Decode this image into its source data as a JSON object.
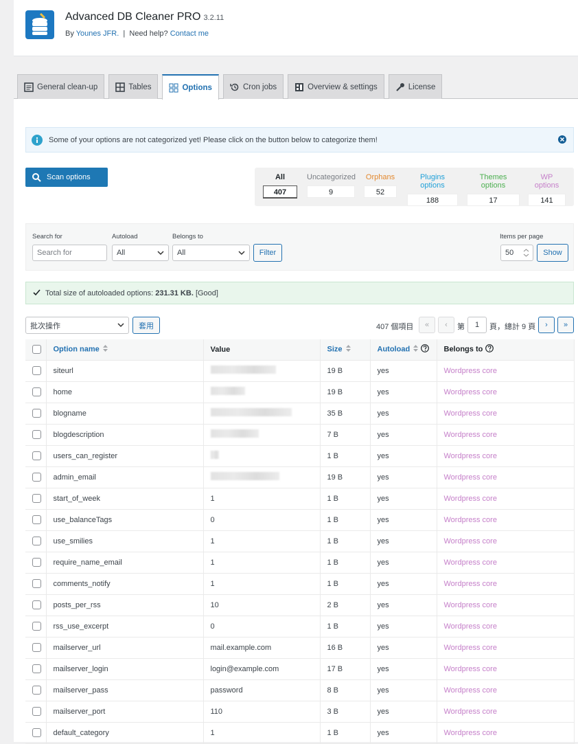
{
  "header": {
    "title": "Advanced DB Cleaner PRO",
    "version": "3.2.11",
    "by": "By",
    "author": "Younes JFR.",
    "separator": "|",
    "help": "Need help?",
    "contact": "Contact me"
  },
  "tabs": {
    "items": [
      "General clean-up",
      "Tables",
      "Options",
      "Cron jobs",
      "Overview & settings",
      "License"
    ],
    "active": 2
  },
  "notice": "Some of your options are not categorized yet! Please click on the button below to categorize them!",
  "scan_button": "Scan options",
  "filters": [
    {
      "label": "All",
      "count": 407
    },
    {
      "label": "Uncategorized",
      "count": 9
    },
    {
      "label": "Orphans",
      "count": 52
    },
    {
      "label": "Plugins options",
      "count": 188
    },
    {
      "label": "Themes options",
      "count": 17
    },
    {
      "label": "WP options",
      "count": 141
    }
  ],
  "search": {
    "search_label": "Search for",
    "search_placeholder": "Search for",
    "autoload_label": "Autoload",
    "autoload_value": "All",
    "belongs_label": "Belongs to",
    "belongs_value": "All",
    "filter_button": "Filter",
    "per_page_label": "Items per page",
    "per_page_value": "50",
    "show_button": "Show"
  },
  "status": {
    "prefix": "Total size of autoloaded options: ",
    "value": "231.31 KB.",
    "suffix": " [Good]"
  },
  "bulk": {
    "select": "批次操作",
    "apply": "套用"
  },
  "pagination": {
    "total": "407 個項目",
    "first": "«",
    "prev": "‹",
    "page_prefix": "第",
    "page": "1",
    "page_suffix": "頁，總計 9 頁",
    "next": "›",
    "last": "»"
  },
  "table": {
    "columns": [
      "Option name",
      "Value",
      "Size",
      "Autoload",
      "Belongs to"
    ],
    "rows": [
      [
        "siteurl",
        null,
        "19 B",
        "yes",
        "Wordpress core"
      ],
      [
        "home",
        null,
        "19 B",
        "yes",
        "Wordpress core"
      ],
      [
        "blogname",
        null,
        "35 B",
        "yes",
        "Wordpress core"
      ],
      [
        "blogdescription",
        null,
        "7 B",
        "yes",
        "Wordpress core"
      ],
      [
        "users_can_register",
        null,
        "1 B",
        "yes",
        "Wordpress core"
      ],
      [
        "admin_email",
        null,
        "19 B",
        "yes",
        "Wordpress core"
      ],
      [
        "start_of_week",
        "1",
        "1 B",
        "yes",
        "Wordpress core"
      ],
      [
        "use_balanceTags",
        "0",
        "1 B",
        "yes",
        "Wordpress core"
      ],
      [
        "use_smilies",
        "1",
        "1 B",
        "yes",
        "Wordpress core"
      ],
      [
        "require_name_email",
        "1",
        "1 B",
        "yes",
        "Wordpress core"
      ],
      [
        "comments_notify",
        "1",
        "1 B",
        "yes",
        "Wordpress core"
      ],
      [
        "posts_per_rss",
        "10",
        "2 B",
        "yes",
        "Wordpress core"
      ],
      [
        "rss_use_excerpt",
        "0",
        "1 B",
        "yes",
        "Wordpress core"
      ],
      [
        "mailserver_url",
        "mail.example.com",
        "16 B",
        "yes",
        "Wordpress core"
      ],
      [
        "mailserver_login",
        "login@example.com",
        "17 B",
        "yes",
        "Wordpress core"
      ],
      [
        "mailserver_pass",
        "password",
        "8 B",
        "yes",
        "Wordpress core"
      ],
      [
        "mailserver_port",
        "110",
        "3 B",
        "yes",
        "Wordpress core"
      ],
      [
        "default_category",
        "1",
        "1 B",
        "yes",
        "Wordpress core"
      ]
    ]
  }
}
